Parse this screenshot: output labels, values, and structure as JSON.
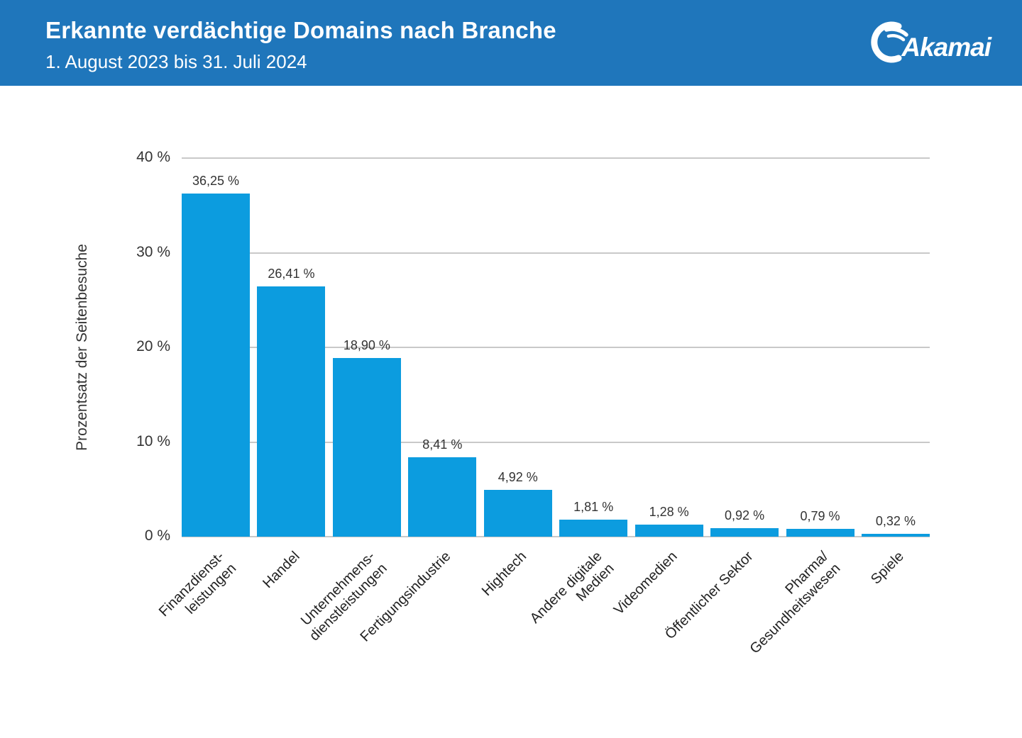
{
  "header": {
    "title": "Erkannte verdächtige Domains nach Branche",
    "subtitle": "1. August 2023 bis 31. Juli 2024",
    "logo_text": "Akamai",
    "background_color": "#1F76BB"
  },
  "chart_data": {
    "type": "bar",
    "title": "Erkannte verdächtige Domains nach Branche",
    "subtitle": "1. August 2023 bis 31. Juli 2024",
    "xlabel": "",
    "ylabel": "Prozentsatz der Seitenbesuche",
    "ylim": [
      0,
      40
    ],
    "grid": true,
    "legend": "none",
    "bar_color": "#0C9CDF",
    "gridline_color": "#C9C9C9",
    "yticks": [
      {
        "value": 40,
        "label": "40 %"
      },
      {
        "value": 30,
        "label": "30 %"
      },
      {
        "value": 20,
        "label": "20 %"
      },
      {
        "value": 10,
        "label": "10 %"
      },
      {
        "value": 0,
        "label": "0 %"
      }
    ],
    "categories": [
      "Finanzdienst-\nleistungen",
      "Handel",
      "Unternehmens-\ndienstleistungen",
      "Fertigungsindustrie",
      "Hightech",
      "Andere digitale\nMedien",
      "Videomedien",
      "Öffentlicher Sektor",
      "Pharma/\nGesundheitswesen",
      "Spiele"
    ],
    "values": [
      36.25,
      26.41,
      18.9,
      8.41,
      4.92,
      1.81,
      1.28,
      0.92,
      0.79,
      0.32
    ],
    "value_labels": [
      "36,25 %",
      "26,41 %",
      "18,90 %",
      "8,41 %",
      "4,92 %",
      "1,81 %",
      "1,28 %",
      "0,92 %",
      "0,79 %",
      "0,32 %"
    ]
  }
}
